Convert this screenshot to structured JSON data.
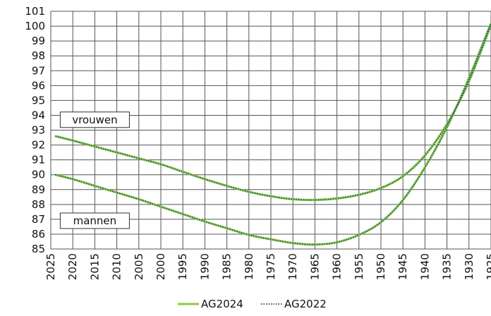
{
  "chart_data": {
    "type": "line",
    "x_reversed": true,
    "xlim": [
      2025,
      1925
    ],
    "ylim": [
      85,
      101
    ],
    "grid": true,
    "x_ticks": [
      "2025",
      "2020",
      "2015",
      "2010",
      "2005",
      "2000",
      "1995",
      "1990",
      "1985",
      "1980",
      "1975",
      "1970",
      "1965",
      "1960",
      "1955",
      "1950",
      "1945",
      "1940",
      "1935",
      "1930",
      "1925"
    ],
    "y_ticks": [
      "85",
      "86",
      "87",
      "88",
      "89",
      "90",
      "91",
      "92",
      "93",
      "94",
      "95",
      "96",
      "97",
      "98",
      "99",
      "100",
      "101"
    ],
    "annotations": [
      {
        "text": "vrouwen",
        "x": 2015,
        "y": 93.7
      },
      {
        "text": "mannen",
        "x": 2015,
        "y": 86.9
      }
    ],
    "legend": {
      "placement": "bottom-center",
      "entries": [
        "AG2024",
        "AG2022"
      ]
    },
    "colors": {
      "AG2024": "#92c83e",
      "AG2022": "#1f5f7a",
      "grid": "#555555"
    },
    "series": [
      {
        "name": "AG2024",
        "group": "vrouwen",
        "style": "solid",
        "x": [
          2024,
          2020,
          2015,
          2010,
          2005,
          2000,
          1995,
          1990,
          1985,
          1980,
          1975,
          1970,
          1965,
          1960,
          1955,
          1950,
          1945,
          1940,
          1935,
          1930,
          1925
        ],
        "y": [
          92.6,
          92.3,
          91.9,
          91.5,
          91.1,
          90.7,
          90.2,
          89.7,
          89.25,
          88.85,
          88.55,
          88.35,
          88.3,
          88.4,
          88.65,
          89.1,
          89.9,
          91.3,
          93.4,
          96.3,
          100.1
        ]
      },
      {
        "name": "AG2022",
        "group": "vrouwen",
        "style": "dotted",
        "x": [
          2024,
          2020,
          2015,
          2010,
          2005,
          2000,
          1995,
          1990,
          1985,
          1980,
          1975,
          1970,
          1965,
          1960,
          1955,
          1950,
          1945,
          1940,
          1935,
          1930,
          1925
        ],
        "y": [
          92.6,
          92.3,
          91.9,
          91.5,
          91.1,
          90.7,
          90.2,
          89.7,
          89.25,
          88.85,
          88.55,
          88.35,
          88.3,
          88.4,
          88.65,
          89.1,
          89.9,
          91.3,
          93.4,
          96.3,
          100.1
        ]
      },
      {
        "name": "AG2024",
        "group": "mannen",
        "style": "solid",
        "x": [
          2024,
          2020,
          2015,
          2010,
          2005,
          2000,
          1995,
          1990,
          1985,
          1980,
          1975,
          1970,
          1965,
          1960,
          1955,
          1950,
          1945,
          1940,
          1935,
          1930,
          1925
        ],
        "y": [
          90.0,
          89.7,
          89.25,
          88.8,
          88.35,
          87.85,
          87.35,
          86.85,
          86.4,
          85.95,
          85.65,
          85.4,
          85.3,
          85.45,
          85.95,
          86.8,
          88.3,
          90.5,
          93.2,
          96.5,
          100.2
        ]
      },
      {
        "name": "AG2022",
        "group": "mannen",
        "style": "dotted",
        "x": [
          2024,
          2020,
          2015,
          2010,
          2005,
          2000,
          1995,
          1990,
          1985,
          1980,
          1975,
          1970,
          1965,
          1960,
          1955,
          1950,
          1945,
          1940,
          1935,
          1930,
          1925
        ],
        "y": [
          90.0,
          89.7,
          89.25,
          88.8,
          88.35,
          87.85,
          87.35,
          86.85,
          86.4,
          85.95,
          85.65,
          85.4,
          85.3,
          85.45,
          85.95,
          86.8,
          88.3,
          90.5,
          93.2,
          96.5,
          100.2
        ]
      }
    ]
  }
}
